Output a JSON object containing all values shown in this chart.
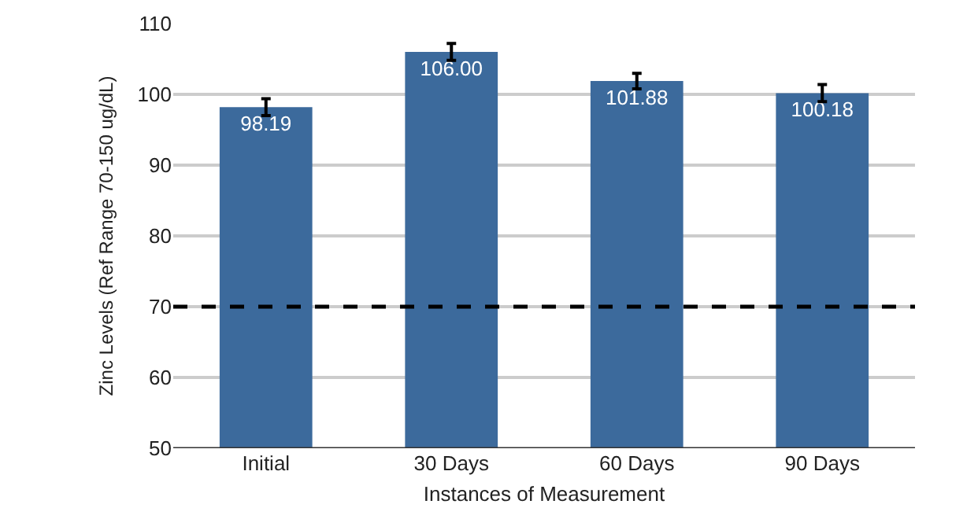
{
  "chart_data": {
    "type": "bar",
    "xlabel": "Instances of Measurement",
    "ylabel": "Zinc Levels (Ref Range 70-150 ug/dL)",
    "categories": [
      "Initial",
      "30 Days",
      "60 Days",
      "90 Days"
    ],
    "values": [
      98.19,
      106.0,
      101.88,
      100.18
    ],
    "value_labels": [
      "98.19",
      "106.00",
      "101.88",
      "100.18"
    ],
    "errors": [
      1.2,
      1.2,
      1.1,
      1.2
    ],
    "color": "#3c6a9c",
    "ylim": [
      50,
      110
    ],
    "yticks": [
      50,
      60,
      70,
      80,
      90,
      100,
      110
    ],
    "grid": "y",
    "ref_lines": [
      {
        "axis": "y",
        "value": 70,
        "color": "#000000",
        "line_style": "dashed"
      }
    ]
  }
}
